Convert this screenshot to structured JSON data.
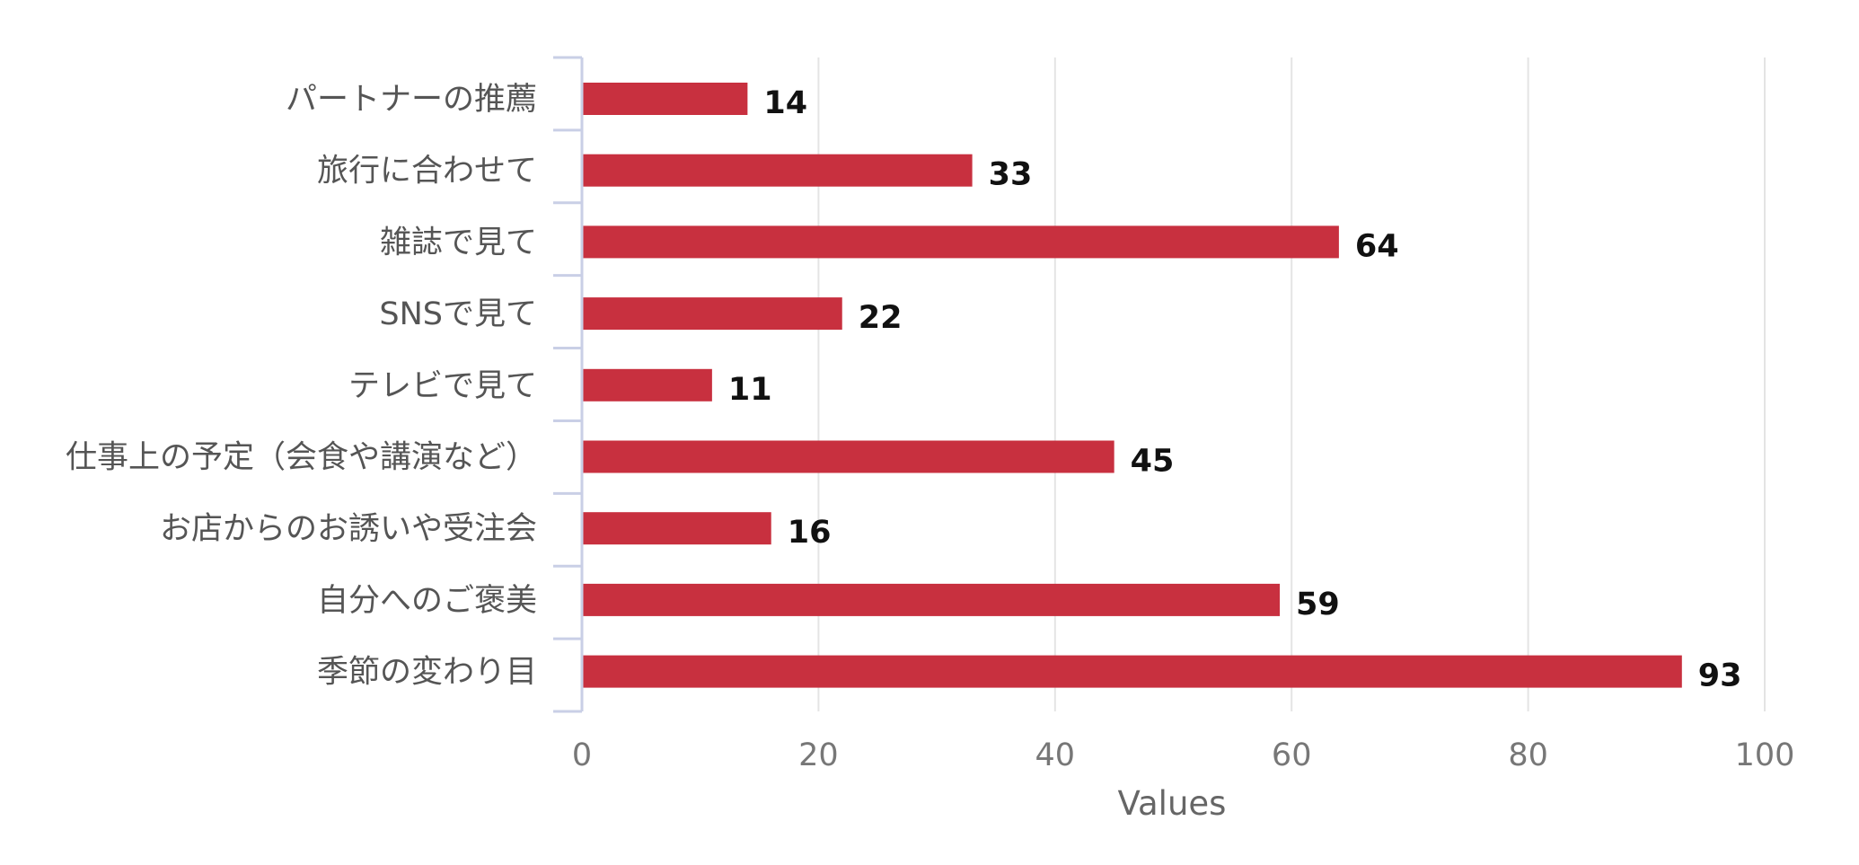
{
  "chart_data": {
    "type": "bar",
    "orientation": "horizontal",
    "title": "",
    "xlabel": "Values",
    "ylabel": "",
    "xlim": [
      0,
      100
    ],
    "x_ticks": [
      0,
      20,
      40,
      60,
      80,
      100
    ],
    "grid": true,
    "legend": "none",
    "bar_color": "#c8303f",
    "categories": [
      "パートナーの推薦",
      "旅行に合わせて",
      "雑誌で見て",
      "SNSで見て",
      "テレビで見て",
      "仕事上の予定（会食や講演など）",
      "お店からのお誘いや受注会",
      "自分へのご褒美",
      "季節の変わり目"
    ],
    "values": [
      14,
      33,
      64,
      22,
      11,
      45,
      16,
      59,
      93
    ]
  }
}
